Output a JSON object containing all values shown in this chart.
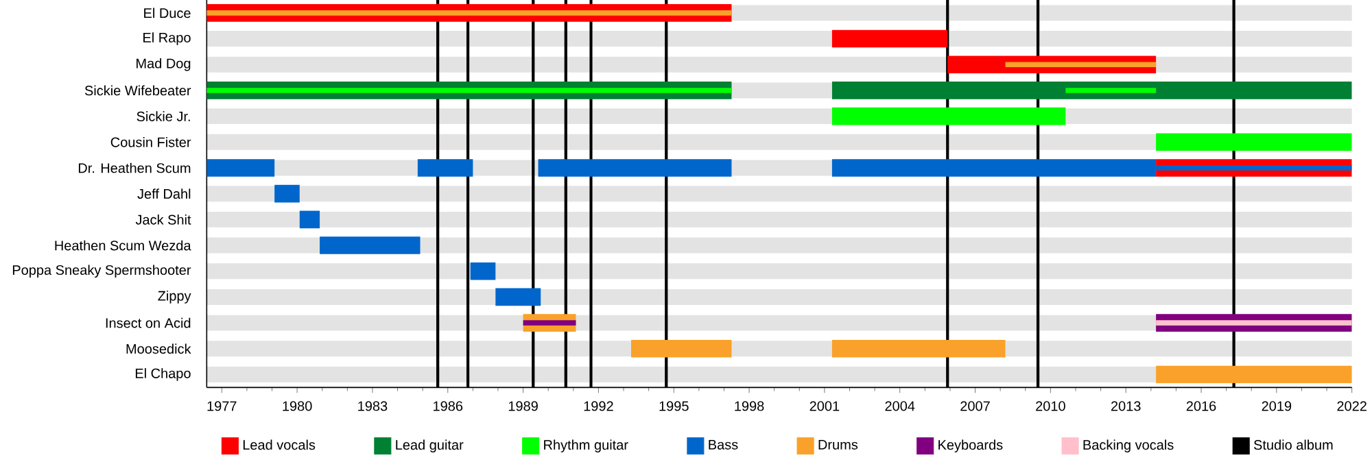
{
  "chart_data": {
    "type": "bar",
    "orientation": "horizontal",
    "grid": "y",
    "legend": "bottom",
    "categories": [
      "El Duce",
      "El Rapo",
      "Mad Dog",
      "Sickie Wifebeater",
      "Sickie Jr.",
      "Cousin Fister",
      "Dr. Heathen Scum",
      "Jeff Dahl",
      "Jack Shit",
      "Heathen Scum Wezda",
      "Poppa Sneaky Spermshooter",
      "Zippy",
      "Insect on Acid",
      "Moosedick",
      "El Chapo"
    ],
    "xlim": [
      1976.4,
      2022
    ],
    "xticks": [
      1977,
      1980,
      1983,
      1986,
      1989,
      1992,
      1995,
      1998,
      2001,
      2004,
      2007,
      2010,
      2013,
      2016,
      2019,
      2022
    ],
    "series": [
      {
        "name": "Lead vocals",
        "color": "#ff0000",
        "base": [
          1976.4,
          2001.3,
          2005.9,
          null,
          null,
          null,
          2014.2,
          null,
          null,
          null,
          null,
          null,
          null,
          null,
          null
        ],
        "values": [
          20.9,
          4.6,
          8.3,
          null,
          null,
          null,
          7.8,
          null,
          null,
          null,
          null,
          null,
          null,
          null,
          null
        ]
      },
      {
        "name": "Lead guitar",
        "color": "#008033",
        "base": [
          null,
          null,
          null,
          1976.4,
          null,
          null,
          null,
          null,
          null,
          null,
          null,
          null,
          null,
          null,
          null
        ],
        "values": [
          null,
          null,
          null,
          20.9,
          null,
          null,
          null,
          null,
          null,
          null,
          null,
          null,
          null,
          null,
          null
        ]
      },
      {
        "color": "#008033",
        "base": [
          null,
          null,
          null,
          2001.3,
          null,
          null,
          null,
          null,
          null,
          null,
          null,
          null,
          null,
          null,
          null
        ],
        "values": [
          null,
          null,
          null,
          20.7,
          null,
          null,
          null,
          null,
          null,
          null,
          null,
          null,
          null,
          null,
          null
        ]
      },
      {
        "name": "Rhythm guitar",
        "color": "#00ff00",
        "base": [
          null,
          null,
          null,
          1976.4,
          2001.3,
          2014.2,
          null,
          null,
          null,
          null,
          null,
          null,
          null,
          null,
          null
        ],
        "values": [
          null,
          null,
          null,
          20.9,
          9.3,
          7.8,
          null,
          null,
          null,
          null,
          null,
          null,
          null,
          null,
          null
        ]
      },
      {
        "color": "#00ff00",
        "base": [
          null,
          null,
          null,
          2010.6,
          null,
          null,
          null,
          null,
          null,
          null,
          null,
          null,
          null,
          null,
          null
        ],
        "values": [
          null,
          null,
          null,
          3.6,
          null,
          null,
          null,
          null,
          null,
          null,
          null,
          null,
          null,
          null,
          null
        ]
      },
      {
        "name": "Bass",
        "color": "#0066cc",
        "base": [
          null,
          null,
          null,
          null,
          null,
          null,
          1976.4,
          1979.1,
          1980.1,
          1980.9,
          1986.9,
          1987.9,
          null,
          null,
          null
        ],
        "values": [
          null,
          null,
          null,
          null,
          null,
          null,
          2.7,
          1.0,
          0.8,
          4.0,
          1.0,
          1.8,
          null,
          null,
          null
        ]
      },
      {
        "color": "#0066cc",
        "base": [
          null,
          null,
          null,
          null,
          null,
          null,
          1984.8,
          null,
          null,
          null,
          null,
          null,
          null,
          null,
          null
        ],
        "values": [
          null,
          null,
          null,
          null,
          null,
          null,
          2.2,
          null,
          null,
          null,
          null,
          null,
          null,
          null,
          null
        ]
      },
      {
        "color": "#0066cc",
        "base": [
          null,
          null,
          null,
          null,
          null,
          null,
          1989.6,
          null,
          null,
          null,
          null,
          null,
          null,
          null,
          null
        ],
        "values": [
          null,
          null,
          null,
          null,
          null,
          null,
          7.7,
          null,
          null,
          null,
          null,
          null,
          null,
          null,
          null
        ]
      },
      {
        "color": "#0066cc",
        "base": [
          null,
          null,
          null,
          null,
          null,
          null,
          2001.3,
          null,
          null,
          null,
          null,
          null,
          null,
          null,
          null
        ],
        "values": [
          null,
          null,
          null,
          null,
          null,
          null,
          12.9,
          null,
          null,
          null,
          null,
          null,
          null,
          null,
          null
        ]
      },
      {
        "color": "#0066cc",
        "base": [
          null,
          null,
          null,
          null,
          null,
          null,
          2014.2,
          null,
          null,
          null,
          null,
          null,
          null,
          null,
          null
        ],
        "values": [
          null,
          null,
          null,
          null,
          null,
          null,
          7.8,
          null,
          null,
          null,
          null,
          null,
          null,
          null,
          null
        ]
      },
      {
        "name": "Drums",
        "color": "#f9a12a",
        "base": [
          1976.4,
          null,
          2008.2,
          null,
          null,
          null,
          null,
          null,
          null,
          null,
          null,
          null,
          1989.0,
          1993.3,
          2014.2
        ],
        "values": [
          20.9,
          null,
          6.0,
          null,
          null,
          null,
          null,
          null,
          null,
          null,
          null,
          null,
          2.1,
          4.0,
          7.8
        ]
      },
      {
        "color": "#f9a12a",
        "base": [
          null,
          null,
          null,
          null,
          null,
          null,
          null,
          null,
          null,
          null,
          null,
          null,
          null,
          2001.3,
          null
        ],
        "values": [
          null,
          null,
          null,
          null,
          null,
          null,
          null,
          null,
          null,
          null,
          null,
          null,
          null,
          6.9,
          null
        ]
      },
      {
        "name": "Keyboards",
        "color": "#800080",
        "base": [
          null,
          null,
          null,
          null,
          null,
          null,
          null,
          null,
          null,
          null,
          null,
          null,
          1989.0,
          null,
          null
        ],
        "values": [
          null,
          null,
          null,
          null,
          null,
          null,
          null,
          null,
          null,
          null,
          null,
          null,
          2.1,
          null,
          null
        ]
      },
      {
        "color": "#800080",
        "base": [
          null,
          null,
          null,
          null,
          null,
          null,
          null,
          null,
          null,
          null,
          null,
          null,
          2014.2,
          null,
          null
        ],
        "values": [
          null,
          null,
          null,
          null,
          null,
          null,
          null,
          null,
          null,
          null,
          null,
          null,
          7.8,
          null,
          null
        ]
      },
      {
        "name": "Backing vocals",
        "color": "#ffc0cb",
        "base": [
          null,
          null,
          null,
          null,
          null,
          null,
          null,
          null,
          null,
          null,
          null,
          null,
          2014.2,
          null,
          null
        ],
        "values": [
          null,
          null,
          null,
          null,
          null,
          null,
          null,
          null,
          null,
          null,
          null,
          null,
          7.8,
          null,
          null
        ]
      }
    ],
    "ref_lines": [
      {
        "axis": "x",
        "value": 1985.6,
        "color": "#000000",
        "label": "Studio album"
      },
      {
        "axis": "x",
        "value": 1986.8,
        "color": "#000000"
      },
      {
        "axis": "x",
        "value": 1989.4,
        "color": "#000000"
      },
      {
        "axis": "x",
        "value": 1990.7,
        "color": "#000000"
      },
      {
        "axis": "x",
        "value": 1991.7,
        "color": "#000000"
      },
      {
        "axis": "x",
        "value": 1994.7,
        "color": "#000000"
      },
      {
        "axis": "x",
        "value": 2005.9,
        "color": "#000000"
      },
      {
        "axis": "x",
        "value": 2009.5,
        "color": "#000000"
      },
      {
        "axis": "x",
        "value": 2017.3,
        "color": "#000000"
      }
    ]
  }
}
